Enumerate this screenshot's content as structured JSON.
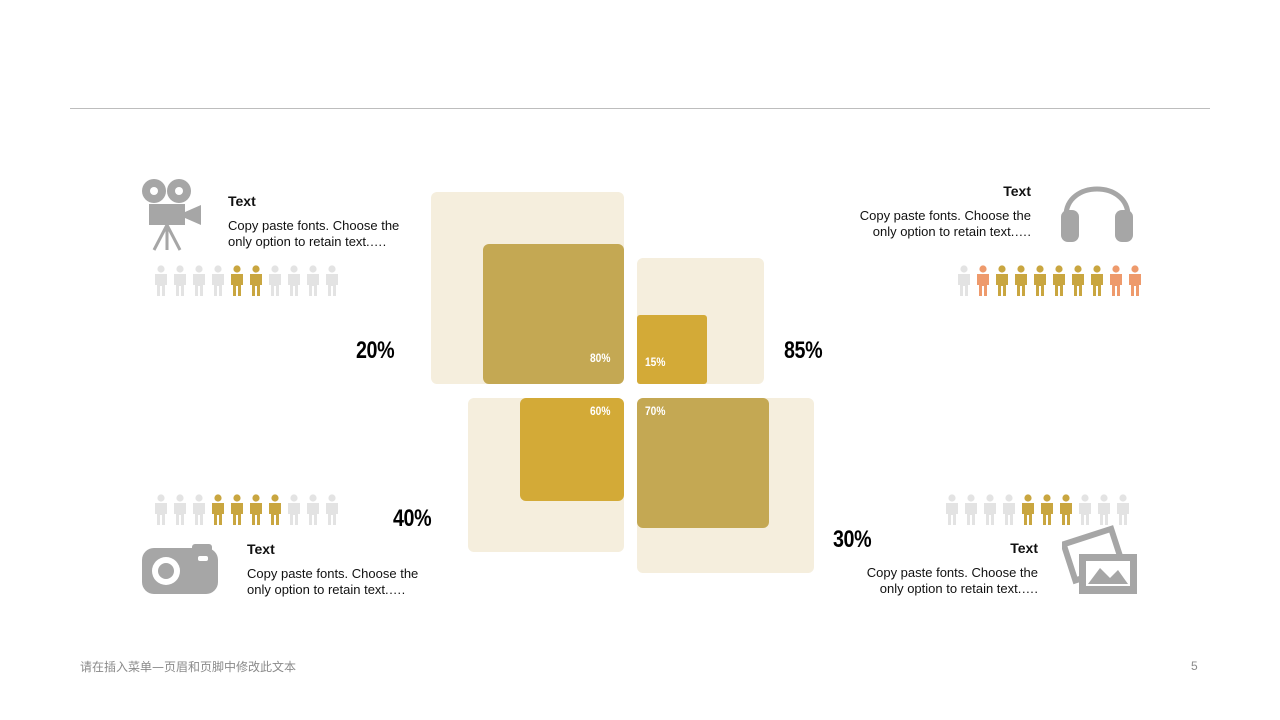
{
  "colors": {
    "light_square": "#f5eedd",
    "olive": "#c4a853",
    "gold": "#d3aa37",
    "icon_gray": "#a6a6a6",
    "person_inactive": "#e3e3e3",
    "person_gold": "#c9a640",
    "person_orange": "#ee9a6c"
  },
  "blocks": {
    "top_left": {
      "title": "Text",
      "body": "Copy paste fonts. Choose the only option to retain text.….",
      "icon": "movie-camera-icon",
      "percent": "20%",
      "people_fill": 0.2
    },
    "top_right": {
      "title": "Text",
      "body": "Copy paste fonts. Choose the only option to retain text.….",
      "icon": "headphones-icon",
      "percent": "85%",
      "people_fill": 0.85
    },
    "bottom_left": {
      "title": "Text",
      "body": "Copy paste fonts. Choose the only option to retain text.….",
      "icon": "camera-icon",
      "percent": "40%",
      "people_fill": 0.4
    },
    "bottom_right": {
      "title": "Text",
      "body": "Copy paste fonts. Choose the only option to retain text.….",
      "icon": "photos-icon",
      "percent": "30%",
      "people_fill": 0.3
    }
  },
  "squares": {
    "top_left": "80%",
    "top_right": "15%",
    "bottom_left": "60%",
    "bottom_right": "70%"
  },
  "footer": {
    "text": "请在插入菜单—页眉和页脚中修改此文本",
    "page_number": "5"
  }
}
